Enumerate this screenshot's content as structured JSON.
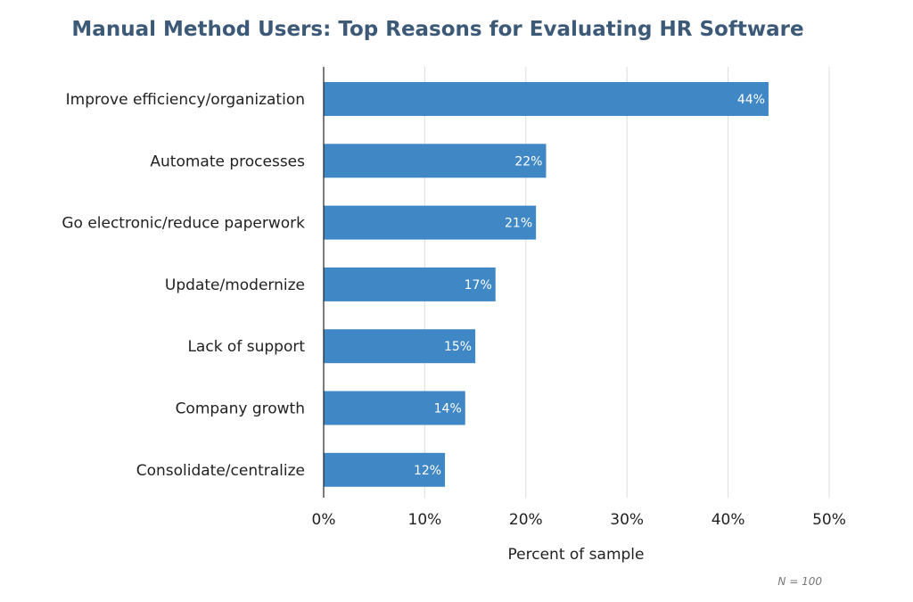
{
  "chart_data": {
    "type": "bar",
    "orientation": "horizontal",
    "title": "Manual Method Users: Top Reasons for Evaluating HR Software",
    "categories": [
      "Improve efficiency/organization",
      "Automate processes",
      "Go electronic/reduce paperwork",
      "Update/modernize",
      "Lack of support",
      "Company growth",
      "Consolidate/centralize"
    ],
    "values": [
      44,
      22,
      21,
      17,
      15,
      14,
      12
    ],
    "value_labels": [
      "44%",
      "22%",
      "21%",
      "17%",
      "15%",
      "14%",
      "12%"
    ],
    "xlabel": "Percent of sample",
    "ylabel": "",
    "xlim": [
      0,
      50
    ],
    "xticks": [
      0,
      10,
      20,
      30,
      40,
      50
    ],
    "xtick_labels": [
      "0%",
      "10%",
      "20%",
      "30%",
      "40%",
      "50%"
    ],
    "grid": "vertical",
    "bar_color": "#3f88c5",
    "note": "N = 100"
  }
}
